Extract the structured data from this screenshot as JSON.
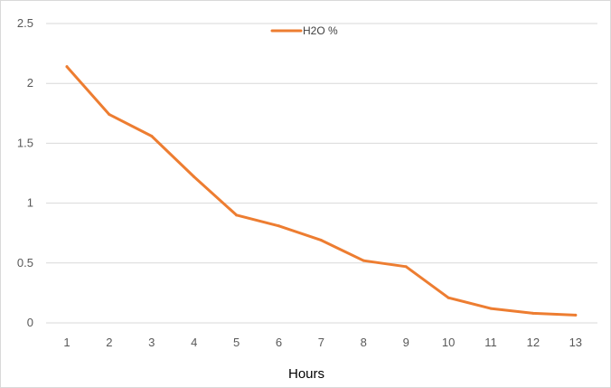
{
  "chart_data": {
    "type": "line",
    "x": [
      1,
      2,
      3,
      4,
      5,
      6,
      7,
      8,
      9,
      10,
      11,
      12,
      13
    ],
    "categories": [
      "1",
      "2",
      "3",
      "4",
      "5",
      "6",
      "7",
      "8",
      "9",
      "10",
      "11",
      "12",
      "13"
    ],
    "series": [
      {
        "name": "H2O %",
        "values": [
          2.14,
          1.74,
          1.56,
          1.22,
          0.9,
          0.81,
          0.69,
          0.52,
          0.47,
          0.21,
          0.12,
          0.08,
          0.065
        ],
        "color": "#ED7D31"
      }
    ],
    "xlabel": "Hours",
    "ylabel": "",
    "ylim": [
      0,
      2.5
    ],
    "yticks": [
      "0",
      "0.5",
      "1",
      "1.5",
      "2",
      "2.5"
    ],
    "grid": true,
    "legend_position": "top-center",
    "colors": {
      "gridline": "#d9d9d9",
      "tick_text": "#595959"
    }
  }
}
